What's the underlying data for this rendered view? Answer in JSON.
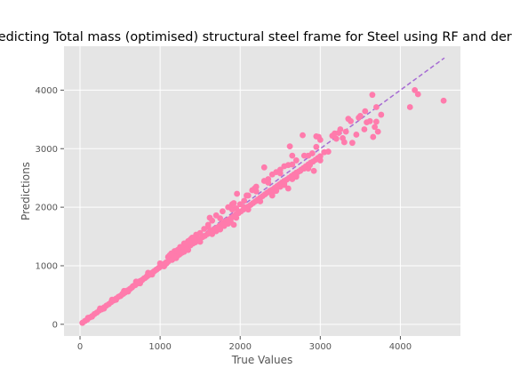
{
  "chart_data": {
    "type": "scatter",
    "title": "Predicting Total mass (optimised) structural steel frame for Steel using RF and derived",
    "xlabel": "True Values",
    "ylabel": "Predictions",
    "xlim": [
      -200,
      4750
    ],
    "ylim": [
      -200,
      4750
    ],
    "xticks": [
      0,
      1000,
      2000,
      3000,
      4000
    ],
    "yticks": [
      0,
      1000,
      2000,
      3000,
      4000
    ],
    "grid": true,
    "style": "ggplot",
    "colors": {
      "background": "#E5E5E5",
      "grid": "#FFFFFF",
      "points": "#FF7BAC",
      "reference_line": "#A66BD3"
    },
    "reference_line": {
      "x": [
        0,
        4550
      ],
      "y": [
        0,
        4550
      ],
      "style": "dashed"
    },
    "points": [
      [
        30,
        25
      ],
      [
        60,
        55
      ],
      [
        90,
        80
      ],
      [
        120,
        115
      ],
      [
        150,
        140
      ],
      [
        180,
        175
      ],
      [
        210,
        200
      ],
      [
        240,
        235
      ],
      [
        270,
        255
      ],
      [
        300,
        290
      ],
      [
        330,
        320
      ],
      [
        360,
        345
      ],
      [
        390,
        380
      ],
      [
        420,
        405
      ],
      [
        450,
        440
      ],
      [
        480,
        470
      ],
      [
        510,
        490
      ],
      [
        540,
        520
      ],
      [
        570,
        560
      ],
      [
        600,
        580
      ],
      [
        630,
        610
      ],
      [
        660,
        650
      ],
      [
        690,
        670
      ],
      [
        720,
        700
      ],
      [
        750,
        740
      ],
      [
        780,
        760
      ],
      [
        810,
        790
      ],
      [
        840,
        830
      ],
      [
        870,
        850
      ],
      [
        900,
        880
      ],
      [
        930,
        910
      ],
      [
        960,
        940
      ],
      [
        990,
        970
      ],
      [
        1020,
        1000
      ],
      [
        1050,
        1030
      ],
      [
        1080,
        1060
      ],
      [
        1110,
        1090
      ],
      [
        1140,
        1120
      ],
      [
        1170,
        1150
      ],
      [
        1200,
        1170
      ],
      [
        1230,
        1210
      ],
      [
        1260,
        1230
      ],
      [
        1290,
        1260
      ],
      [
        1320,
        1290
      ],
      [
        1350,
        1320
      ],
      [
        1380,
        1350
      ],
      [
        1410,
        1380
      ],
      [
        1440,
        1400
      ],
      [
        1470,
        1430
      ],
      [
        1500,
        1460
      ],
      [
        1530,
        1490
      ],
      [
        1560,
        1510
      ],
      [
        1590,
        1540
      ],
      [
        1620,
        1570
      ],
      [
        1650,
        1600
      ],
      [
        1680,
        1630
      ],
      [
        1710,
        1650
      ],
      [
        1740,
        1680
      ],
      [
        1770,
        1710
      ],
      [
        1800,
        1740
      ],
      [
        1830,
        1770
      ],
      [
        1860,
        1790
      ],
      [
        1890,
        1820
      ],
      [
        1920,
        1850
      ],
      [
        1950,
        1880
      ],
      [
        1980,
        1900
      ],
      [
        2010,
        1930
      ],
      [
        2040,
        1960
      ],
      [
        2070,
        1990
      ],
      [
        2100,
        2010
      ],
      [
        2130,
        2040
      ],
      [
        2160,
        2070
      ],
      [
        2190,
        2100
      ],
      [
        2220,
        2130
      ],
      [
        2250,
        2160
      ],
      [
        2280,
        2190
      ],
      [
        2310,
        2220
      ],
      [
        2340,
        2250
      ],
      [
        2370,
        2280
      ],
      [
        2400,
        2300
      ],
      [
        2430,
        2330
      ],
      [
        2460,
        2360
      ],
      [
        2490,
        2390
      ],
      [
        2520,
        2420
      ],
      [
        2550,
        2450
      ],
      [
        2580,
        2470
      ],
      [
        2610,
        2500
      ],
      [
        2640,
        2530
      ],
      [
        2670,
        2560
      ],
      [
        2700,
        2590
      ],
      [
        2730,
        2610
      ],
      [
        2760,
        2640
      ],
      [
        2790,
        2670
      ],
      [
        2820,
        2700
      ],
      [
        2850,
        2730
      ],
      [
        2880,
        2760
      ],
      [
        2910,
        2780
      ],
      [
        2940,
        2810
      ],
      [
        2970,
        2840
      ],
      [
        3000,
        2870
      ],
      [
        100,
        110
      ],
      [
        250,
        270
      ],
      [
        400,
        420
      ],
      [
        550,
        570
      ],
      [
        700,
        730
      ],
      [
        850,
        880
      ],
      [
        1000,
        1040
      ],
      [
        1150,
        1200
      ],
      [
        1300,
        1350
      ],
      [
        1450,
        1510
      ],
      [
        1600,
        1660
      ],
      [
        1750,
        1810
      ],
      [
        1900,
        1960
      ],
      [
        2050,
        2110
      ],
      [
        2200,
        2270
      ],
      [
        2350,
        2420
      ],
      [
        2500,
        2580
      ],
      [
        2650,
        2730
      ],
      [
        2800,
        2880
      ],
      [
        2950,
        3030
      ],
      [
        150,
        130
      ],
      [
        300,
        270
      ],
      [
        450,
        420
      ],
      [
        600,
        560
      ],
      [
        750,
        700
      ],
      [
        900,
        850
      ],
      [
        1050,
        990
      ],
      [
        1200,
        1130
      ],
      [
        1350,
        1270
      ],
      [
        1500,
        1410
      ],
      [
        1650,
        1540
      ],
      [
        1800,
        1680
      ],
      [
        1950,
        1820
      ],
      [
        2100,
        1960
      ],
      [
        2250,
        2100
      ],
      [
        2400,
        2240
      ],
      [
        2550,
        2380
      ],
      [
        2700,
        2520
      ],
      [
        2850,
        2660
      ],
      [
        3000,
        2800
      ],
      [
        1200,
        1250
      ],
      [
        1250,
        1320
      ],
      [
        1300,
        1380
      ],
      [
        1350,
        1420
      ],
      [
        1400,
        1480
      ],
      [
        1450,
        1530
      ],
      [
        1500,
        1560
      ],
      [
        1550,
        1630
      ],
      [
        1600,
        1700
      ],
      [
        1650,
        1770
      ],
      [
        1620,
        1820
      ],
      [
        1700,
        1860
      ],
      [
        1780,
        1930
      ],
      [
        1850,
        2000
      ],
      [
        1920,
        2070
      ],
      [
        1960,
        2230
      ],
      [
        2080,
        2200
      ],
      [
        2150,
        2290
      ],
      [
        2200,
        2350
      ],
      [
        2180,
        2320
      ],
      [
        2100,
        2200
      ],
      [
        2300,
        2450
      ],
      [
        2350,
        2480
      ],
      [
        2400,
        2560
      ],
      [
        2450,
        2600
      ],
      [
        2500,
        2640
      ],
      [
        2550,
        2700
      ],
      [
        2600,
        2720
      ],
      [
        2650,
        2880
      ],
      [
        2700,
        2800
      ],
      [
        2620,
        3040
      ],
      [
        2780,
        3230
      ],
      [
        2300,
        2680
      ],
      [
        2850,
        2880
      ],
      [
        2900,
        2920
      ],
      [
        2950,
        3210
      ],
      [
        2980,
        3200
      ],
      [
        3000,
        3150
      ],
      [
        3050,
        2940
      ],
      [
        3100,
        2950
      ],
      [
        3150,
        3220
      ],
      [
        3180,
        3260
      ],
      [
        3200,
        3170
      ],
      [
        3230,
        3270
      ],
      [
        3250,
        3330
      ],
      [
        3280,
        3180
      ],
      [
        3300,
        3110
      ],
      [
        3320,
        3290
      ],
      [
        3350,
        3510
      ],
      [
        3380,
        3470
      ],
      [
        3400,
        3100
      ],
      [
        3450,
        3240
      ],
      [
        3480,
        3530
      ],
      [
        3500,
        3560
      ],
      [
        3550,
        3330
      ],
      [
        3560,
        3640
      ],
      [
        3580,
        3450
      ],
      [
        3620,
        3470
      ],
      [
        3650,
        3920
      ],
      [
        3660,
        3200
      ],
      [
        3680,
        3370
      ],
      [
        3700,
        3460
      ],
      [
        3720,
        3290
      ],
      [
        3760,
        3580
      ],
      [
        3700,
        3710
      ],
      [
        4120,
        3710
      ],
      [
        4180,
        4000
      ],
      [
        4220,
        3930
      ],
      [
        4540,
        3820
      ],
      [
        2920,
        2620
      ],
      [
        1900,
        2050
      ],
      [
        1950,
        1980
      ],
      [
        2000,
        2050
      ],
      [
        2050,
        2000
      ],
      [
        1850,
        1720
      ],
      [
        1750,
        1620
      ],
      [
        1700,
        1590
      ],
      [
        1800,
        1700
      ],
      [
        1880,
        1760
      ],
      [
        1920,
        1700
      ],
      [
        2400,
        2200
      ],
      [
        2450,
        2280
      ],
      [
        2500,
        2350
      ],
      [
        2550,
        2400
      ],
      [
        2600,
        2320
      ],
      [
        2650,
        2480
      ],
      [
        2700,
        2550
      ],
      [
        2750,
        2620
      ],
      [
        2800,
        2660
      ],
      [
        2870,
        2720
      ],
      [
        1100,
        1150
      ],
      [
        1120,
        1180
      ],
      [
        1140,
        1210
      ],
      [
        1180,
        1250
      ],
      [
        1220,
        1270
      ],
      [
        1280,
        1330
      ],
      [
        1320,
        1380
      ],
      [
        1360,
        1410
      ],
      [
        1380,
        1450
      ],
      [
        1420,
        1470
      ],
      [
        1050,
        1010
      ],
      [
        1080,
        1040
      ],
      [
        1100,
        1070
      ],
      [
        1150,
        1100
      ],
      [
        1180,
        1130
      ],
      [
        1210,
        1160
      ],
      [
        1240,
        1190
      ],
      [
        1270,
        1220
      ],
      [
        1300,
        1240
      ],
      [
        1330,
        1280
      ],
      [
        500,
        480
      ],
      [
        530,
        520
      ],
      [
        560,
        540
      ],
      [
        590,
        575
      ],
      [
        620,
        600
      ],
      [
        650,
        630
      ],
      [
        680,
        665
      ],
      [
        710,
        695
      ],
      [
        740,
        720
      ],
      [
        770,
        750
      ],
      [
        800,
        785
      ],
      [
        830,
        810
      ],
      [
        860,
        840
      ],
      [
        890,
        870
      ],
      [
        920,
        900
      ],
      [
        950,
        930
      ],
      [
        980,
        960
      ],
      [
        1010,
        990
      ],
      [
        1040,
        1020
      ],
      [
        1070,
        1050
      ]
    ]
  }
}
